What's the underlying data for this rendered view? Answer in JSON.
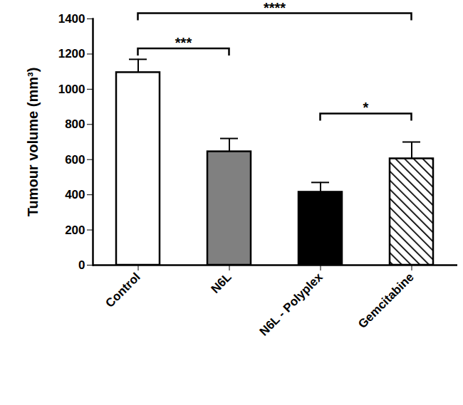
{
  "chart_data": {
    "type": "bar",
    "categories": [
      "Control",
      "N6L",
      "N6L - Polyplex",
      "Gemcitabine"
    ],
    "values": [
      1095,
      645,
      415,
      605
    ],
    "errors": [
      75,
      75,
      55,
      95
    ],
    "colors": [
      "#ffffff",
      "#808080",
      "#000000",
      "hatched"
    ],
    "y_label": "Tumour volume (mm³)",
    "ylim": [
      0,
      1400
    ],
    "yticks": [
      0,
      200,
      400,
      600,
      800,
      1000,
      1200,
      1400
    ],
    "grid": false,
    "comparisons": [
      {
        "from": "Control",
        "to": "Gemcitabine",
        "y": 1430,
        "label": "****"
      },
      {
        "from": "Control",
        "to": "N6L",
        "y": 1230,
        "label": "***"
      },
      {
        "from": "N6L - Polyplex",
        "to": "Gemcitabine",
        "y": 860,
        "label": "*"
      }
    ]
  }
}
